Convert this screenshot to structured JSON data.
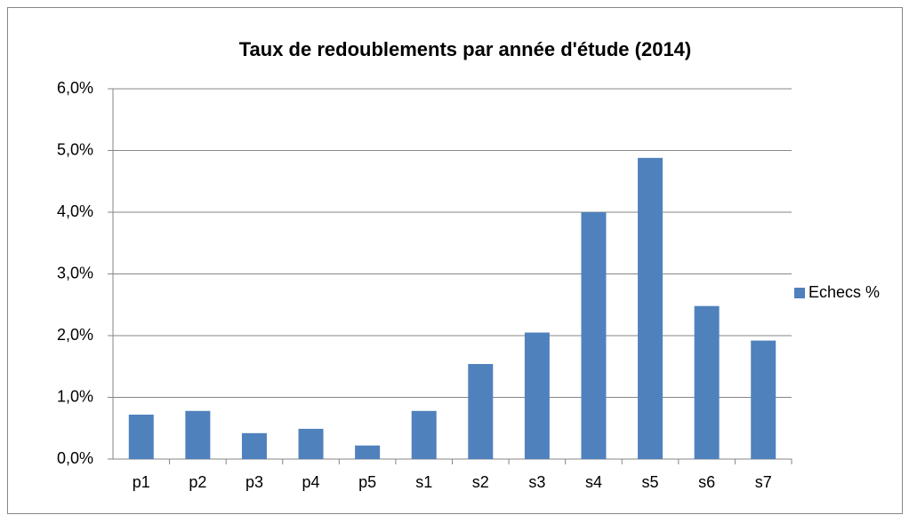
{
  "chart_data": {
    "type": "bar",
    "title": "Taux de redoublements par année d'étude (2014)",
    "categories": [
      "p1",
      "p2",
      "p3",
      "p4",
      "p5",
      "s1",
      "s2",
      "s3",
      "s4",
      "s5",
      "s6",
      "s7"
    ],
    "series": [
      {
        "name": "Echecs %",
        "color": "#4f81bd",
        "values": [
          0.72,
          0.78,
          0.42,
          0.49,
          0.22,
          0.78,
          1.54,
          2.05,
          4.0,
          4.88,
          2.48,
          1.92
        ]
      }
    ],
    "ylim": [
      0,
      6
    ],
    "yticks": [
      {
        "value": 0,
        "label": "0,0%"
      },
      {
        "value": 1,
        "label": "1,0%"
      },
      {
        "value": 2,
        "label": "2,0%"
      },
      {
        "value": 3,
        "label": "3,0%"
      },
      {
        "value": 4,
        "label": "4,0%"
      },
      {
        "value": 5,
        "label": "5,0%"
      },
      {
        "value": 6,
        "label": "6,0%"
      }
    ],
    "grid": true,
    "legend": "right"
  }
}
